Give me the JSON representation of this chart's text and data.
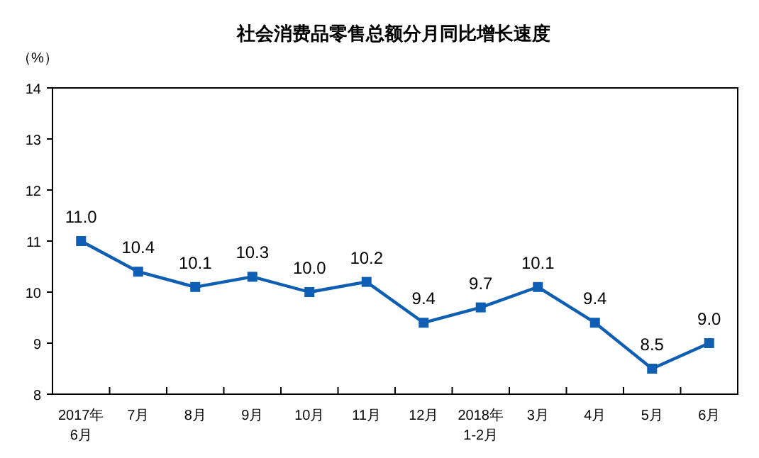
{
  "chart_data": {
    "type": "line",
    "title": "社会消费品零售总额分月同比增长速度",
    "ylabel": "（%）",
    "categories": [
      "2017年\n6月",
      "7月",
      "8月",
      "9月",
      "10月",
      "11月",
      "12月",
      "2018年\n1-2月",
      "3月",
      "4月",
      "5月",
      "6月"
    ],
    "series": [
      {
        "color": "#0e5fb4",
        "values": [
          11.0,
          10.4,
          10.1,
          10.3,
          10.0,
          10.2,
          9.4,
          9.7,
          10.1,
          9.4,
          8.5,
          9.0
        ],
        "value_labels": [
          "11.0",
          "10.4",
          "10.1",
          "10.3",
          "10.0",
          "10.2",
          "9.4",
          "9.7",
          "10.1",
          "9.4",
          "8.5",
          "9.0"
        ]
      }
    ],
    "ylim": [
      8,
      14
    ],
    "yticks": [
      8,
      9,
      10,
      11,
      12,
      13,
      14
    ],
    "grid": false,
    "marker": "square",
    "line_style": "solid"
  }
}
